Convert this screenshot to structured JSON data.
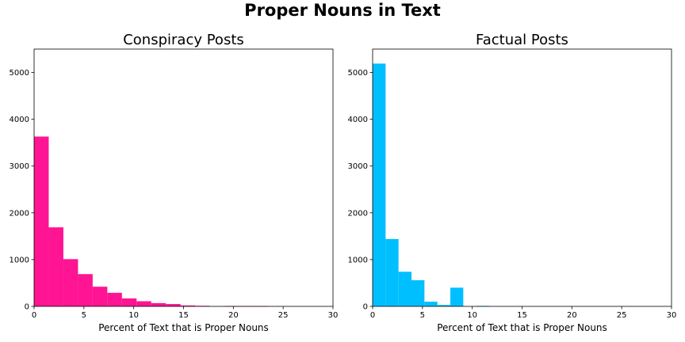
{
  "figure": {
    "suptitle": "Proper Nouns in Text"
  },
  "chart_data": [
    {
      "type": "bar",
      "subtype": "histogram",
      "title": "Conspiracy Posts",
      "xlabel": "Percent of Text that is Proper Nouns",
      "ylabel": "",
      "xlim": [
        0,
        30
      ],
      "ylim": [
        0,
        5500
      ],
      "xticks": [
        0,
        5,
        10,
        15,
        20,
        25,
        30
      ],
      "yticks": [
        0,
        1000,
        2000,
        3000,
        4000,
        5000
      ],
      "grid": false,
      "color": "#ff1493",
      "bin_width": 1.47,
      "bins": [
        {
          "x0": 0.0,
          "x1": 1.47,
          "count": 3630
        },
        {
          "x0": 1.47,
          "x1": 2.94,
          "count": 1690
        },
        {
          "x0": 2.94,
          "x1": 4.41,
          "count": 1010
        },
        {
          "x0": 4.41,
          "x1": 5.88,
          "count": 690
        },
        {
          "x0": 5.88,
          "x1": 7.35,
          "count": 420
        },
        {
          "x0": 7.35,
          "x1": 8.82,
          "count": 290
        },
        {
          "x0": 8.82,
          "x1": 10.29,
          "count": 170
        },
        {
          "x0": 10.29,
          "x1": 11.76,
          "count": 110
        },
        {
          "x0": 11.76,
          "x1": 13.23,
          "count": 70
        },
        {
          "x0": 13.23,
          "x1": 14.7,
          "count": 50
        },
        {
          "x0": 14.7,
          "x1": 16.17,
          "count": 20
        },
        {
          "x0": 16.17,
          "x1": 17.64,
          "count": 12
        },
        {
          "x0": 17.64,
          "x1": 19.11,
          "count": 0
        },
        {
          "x0": 19.11,
          "x1": 20.58,
          "count": 8
        },
        {
          "x0": 20.58,
          "x1": 22.05,
          "count": 8
        },
        {
          "x0": 22.05,
          "x1": 23.52,
          "count": 6
        }
      ]
    },
    {
      "type": "bar",
      "subtype": "histogram",
      "title": "Factual Posts",
      "xlabel": "Percent of Text that is Proper Nouns",
      "ylabel": "",
      "xlim": [
        0,
        30
      ],
      "ylim": [
        0,
        5500
      ],
      "xticks": [
        0,
        5,
        10,
        15,
        20,
        25,
        30
      ],
      "yticks": [
        0,
        1000,
        2000,
        3000,
        4000,
        5000
      ],
      "grid": false,
      "color": "#00bfff",
      "bin_width": 1.3,
      "bins": [
        {
          "x0": 0.0,
          "x1": 1.3,
          "count": 5190
        },
        {
          "x0": 1.3,
          "x1": 2.6,
          "count": 1440
        },
        {
          "x0": 2.6,
          "x1": 3.9,
          "count": 740
        },
        {
          "x0": 3.9,
          "x1": 5.2,
          "count": 560
        },
        {
          "x0": 5.2,
          "x1": 6.5,
          "count": 100
        },
        {
          "x0": 6.5,
          "x1": 7.8,
          "count": 30
        },
        {
          "x0": 7.8,
          "x1": 9.1,
          "count": 400
        },
        {
          "x0": 9.1,
          "x1": 10.4,
          "count": 0
        },
        {
          "x0": 10.4,
          "x1": 11.7,
          "count": 10
        }
      ]
    }
  ]
}
